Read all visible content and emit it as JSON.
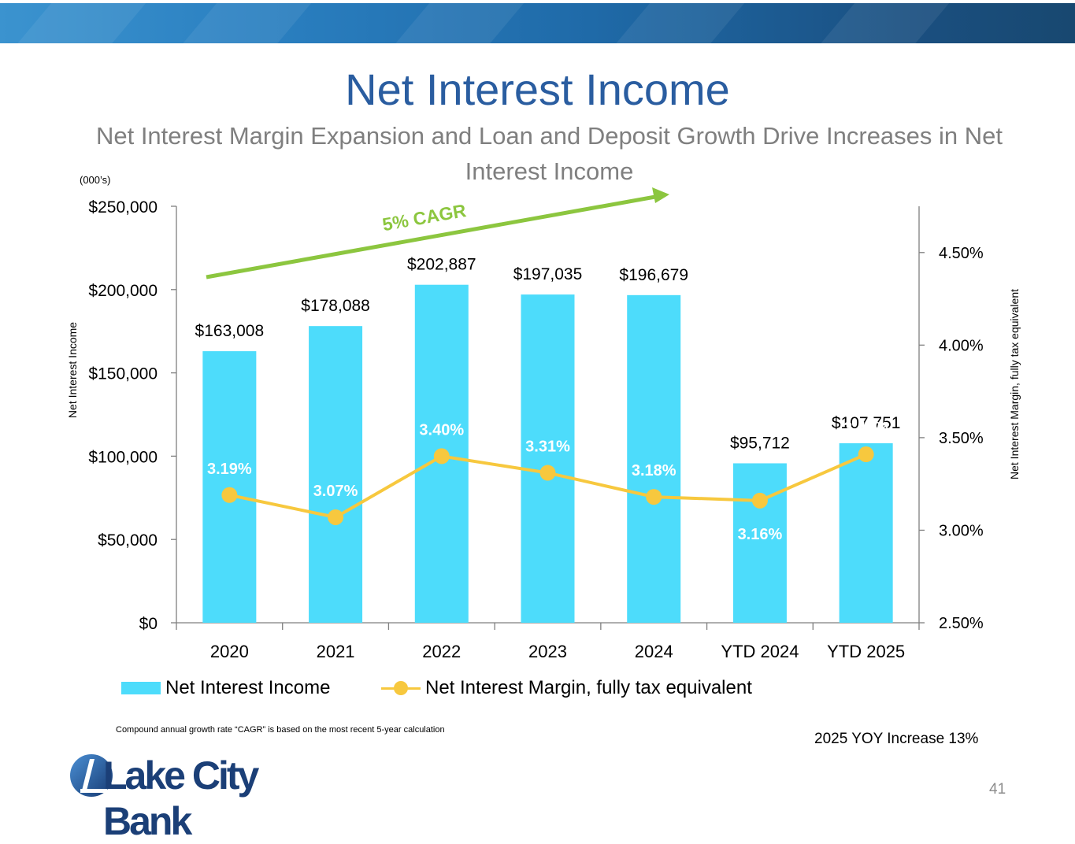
{
  "title": "Net Interest Income",
  "subtitle": "Net Interest Margin Expansion and Loan and Deposit Growth Drive Increases in Net Interest Income",
  "units_note": "(000’s)",
  "footnote": "Compound annual growth rate “CAGR” is based on the most recent 5-year calculation",
  "yoy_note": "2025 YOY Increase 13%",
  "page_number": "41",
  "logo_text": "Lake City Bank",
  "colors": {
    "bar": "#4ddcfb",
    "line": "#f7c83e",
    "cagr": "#8cc63f",
    "title": "#2a5da0",
    "subtitle": "#7f7f7f"
  },
  "chart_data": {
    "type": "bar",
    "categories": [
      "2020",
      "2021",
      "2022",
      "2023",
      "2024",
      "YTD 2024",
      "YTD 2025"
    ],
    "series": [
      {
        "name": "Net Interest Income",
        "type": "bar",
        "axis": "left",
        "values": [
          163008,
          178088,
          202887,
          197035,
          196679,
          95712,
          107751
        ],
        "labels": [
          "$163,008",
          "$178,088",
          "$202,887",
          "$197,035",
          "$196,679",
          "$95,712",
          "$107,751"
        ]
      },
      {
        "name": "Net Interest Margin, fully tax equivalent",
        "type": "line",
        "axis": "right",
        "values": [
          3.19,
          3.07,
          3.4,
          3.31,
          3.18,
          3.16,
          3.41
        ],
        "labels": [
          "3.19%",
          "3.07%",
          "3.40%",
          "3.31%",
          "3.18%",
          "3.16%",
          "3.41%"
        ]
      }
    ],
    "ylabel": "Net Interest Income",
    "y2label": "Net Interest Margin, fully tax equivalent",
    "ylim": [
      0,
      250000
    ],
    "y2lim": [
      2.5,
      4.75
    ],
    "yticks": [
      "$0",
      "$50,000",
      "$100,000",
      "$150,000",
      "$200,000",
      "$250,000"
    ],
    "y2ticks": [
      "2.50%",
      "3.00%",
      "3.50%",
      "4.00%",
      "4.50%"
    ],
    "legend_position": "bottom",
    "grid": false,
    "annotation": "5% CAGR"
  }
}
